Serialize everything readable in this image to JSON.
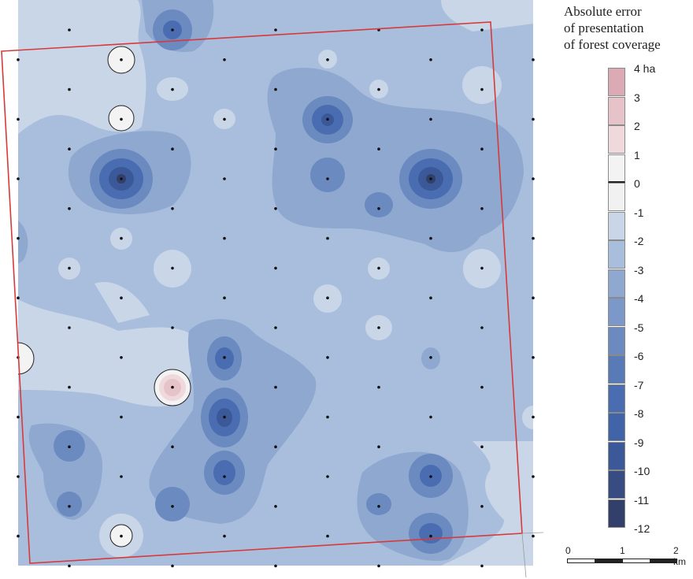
{
  "legend": {
    "title_lines": [
      "Absolute error",
      "of presentation",
      "of forest coverage"
    ],
    "unit": "ha",
    "classes": [
      {
        "from": 3,
        "to": 4,
        "color": "#dcaab4"
      },
      {
        "from": 2,
        "to": 3,
        "color": "#e6c2c9"
      },
      {
        "from": 1,
        "to": 2,
        "color": "#efd9dd"
      },
      {
        "from": 0,
        "to": 1,
        "color": "#f2f3f2"
      },
      {
        "from": -1,
        "to": 0,
        "color": "#f0f1f0"
      },
      {
        "from": -2,
        "to": -1,
        "color": "#c9d6e8"
      },
      {
        "from": -3,
        "to": -2,
        "color": "#a9bedd"
      },
      {
        "from": -4,
        "to": -3,
        "color": "#8ea8d0"
      },
      {
        "from": -5,
        "to": -4,
        "color": "#7b98c8"
      },
      {
        "from": -6,
        "to": -5,
        "color": "#6a8ac0"
      },
      {
        "from": -7,
        "to": -6,
        "color": "#587bb8"
      },
      {
        "from": -8,
        "to": -7,
        "color": "#4a6db2"
      },
      {
        "from": -9,
        "to": -8,
        "color": "#4163a8"
      },
      {
        "from": -10,
        "to": -9,
        "color": "#3b5898"
      },
      {
        "from": -11,
        "to": -10,
        "color": "#374c82"
      },
      {
        "from": -12,
        "to": -11,
        "color": "#333f6b"
      }
    ],
    "tick_labels": [
      "4 ha",
      "3",
      "2",
      "1",
      "0",
      "-1",
      "-2",
      "-3",
      "-4",
      "-5",
      "-6",
      "-7",
      "-8",
      "-9",
      "-10",
      "-11",
      "-12"
    ]
  },
  "scale_bar": {
    "labels": [
      "0",
      "1",
      "2 km"
    ]
  },
  "map": {
    "boundary_color": "#d63a3a",
    "background_color": "#a9bedd",
    "point_color": "#111111",
    "zero_contour_color": "#222222"
  },
  "chart_data": {
    "type": "heatmap",
    "title": "Absolute error of presentation of forest coverage",
    "unit": "ha",
    "value_range": [
      -12,
      4
    ],
    "class_breaks": [
      4,
      3,
      2,
      1,
      0,
      -1,
      -2,
      -3,
      -4,
      -5,
      -6,
      -7,
      -8,
      -9,
      -10,
      -11,
      -12
    ],
    "scale_bar_km": [
      0,
      1,
      2
    ],
    "notable_extrema": [
      {
        "location": "upper-left cluster",
        "approx_value": -11
      },
      {
        "location": "upper-right cluster",
        "approx_value": -11
      },
      {
        "location": "top center",
        "approx_value": -7
      },
      {
        "location": "upper center",
        "approx_value": -8
      },
      {
        "location": "center-left lower",
        "approx_value": -9
      },
      {
        "location": "lower right",
        "approx_value": -8
      },
      {
        "location": "center-left positive anomaly",
        "approx_value": 3
      },
      {
        "location": "white zero-contour circles",
        "approx_value": 0
      }
    ]
  }
}
